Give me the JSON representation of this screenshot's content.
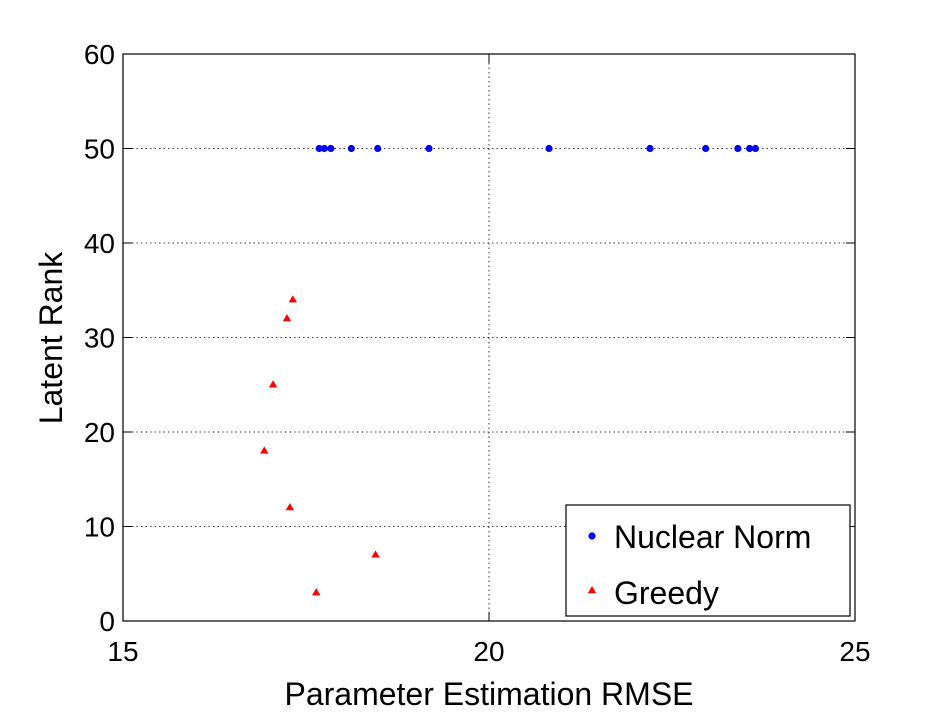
{
  "chart_data": {
    "type": "scatter",
    "title": "",
    "xlabel": "Parameter Estimation RMSE",
    "ylabel": "Latent Rank",
    "xlim": [
      15,
      25
    ],
    "ylim": [
      0,
      60
    ],
    "xticks": [
      "15",
      "20",
      "25"
    ],
    "yticks": [
      "0",
      "10",
      "20",
      "30",
      "40",
      "50",
      "60"
    ],
    "grid": "dotted, at ticks",
    "legend_position": "bottom-right",
    "series": [
      {
        "name": "Nuclear Norm",
        "marker": "dot",
        "color": "#0000ff",
        "points": [
          {
            "x": 17.68,
            "y": 50
          },
          {
            "x": 17.75,
            "y": 50
          },
          {
            "x": 17.84,
            "y": 50
          },
          {
            "x": 18.12,
            "y": 50
          },
          {
            "x": 18.48,
            "y": 50
          },
          {
            "x": 19.18,
            "y": 50
          },
          {
            "x": 20.82,
            "y": 50
          },
          {
            "x": 22.2,
            "y": 50
          },
          {
            "x": 22.96,
            "y": 50
          },
          {
            "x": 23.4,
            "y": 50
          },
          {
            "x": 23.56,
            "y": 50
          },
          {
            "x": 23.64,
            "y": 50
          }
        ]
      },
      {
        "name": "Greedy",
        "marker": "triangle",
        "color": "#ff0000",
        "points": [
          {
            "x": 17.32,
            "y": 34
          },
          {
            "x": 17.24,
            "y": 32
          },
          {
            "x": 17.05,
            "y": 25
          },
          {
            "x": 16.93,
            "y": 18
          },
          {
            "x": 17.28,
            "y": 12
          },
          {
            "x": 18.45,
            "y": 7
          },
          {
            "x": 17.64,
            "y": 3
          }
        ]
      }
    ]
  }
}
